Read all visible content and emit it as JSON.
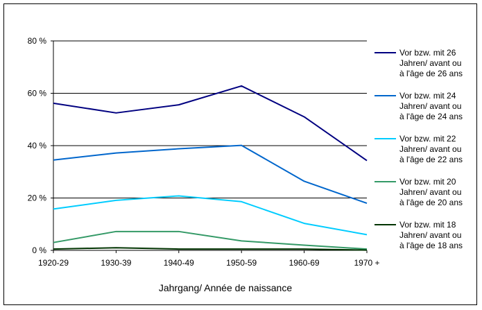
{
  "chart_data": {
    "type": "line",
    "xlabel": "Jahrgang/ Année de naissance",
    "ylabel": "",
    "categories": [
      "1920-29",
      "1930-39",
      "1940-49",
      "1950-59",
      "1960-69",
      "1970 +"
    ],
    "ylim": [
      0,
      80
    ],
    "yticks": [
      0,
      20,
      40,
      60,
      80
    ],
    "ytick_labels": [
      "0 %",
      "20 %",
      "40 %",
      "60 %",
      "80 %"
    ],
    "grid": true,
    "legend_position": "right",
    "series": [
      {
        "name_lines": [
          "Vor bzw. mit 26",
          "Jahren/ avant ou",
          "à l'âge de 26 ans"
        ],
        "color": "#000080",
        "values": [
          56.2,
          52.5,
          55.6,
          62.8,
          51.0,
          34.3
        ]
      },
      {
        "name_lines": [
          "Vor bzw. mit 24",
          "Jahren/ avant ou",
          "à l'âge de 24 ans"
        ],
        "color": "#0066CC",
        "values": [
          34.5,
          37.2,
          38.8,
          40.1,
          26.4,
          18.0
        ]
      },
      {
        "name_lines": [
          "Vor bzw. mit 22",
          "Jahren/ avant ou",
          "à l'âge de 22 ans"
        ],
        "color": "#00CCFF",
        "values": [
          15.8,
          19.1,
          20.8,
          18.6,
          10.3,
          6.0
        ]
      },
      {
        "name_lines": [
          "Vor bzw. mit 20",
          "Jahren/ avant ou",
          "à l'âge de 20 ans"
        ],
        "color": "#339966",
        "values": [
          3.0,
          7.2,
          7.2,
          3.6,
          2.0,
          0.5
        ]
      },
      {
        "name_lines": [
          "Vor bzw. mit 18",
          "Jahren/ avant ou",
          "à l'âge de 18 ans"
        ],
        "color": "#003300",
        "values": [
          0.5,
          1.0,
          0.5,
          0.5,
          0.5,
          0.1
        ]
      }
    ]
  }
}
